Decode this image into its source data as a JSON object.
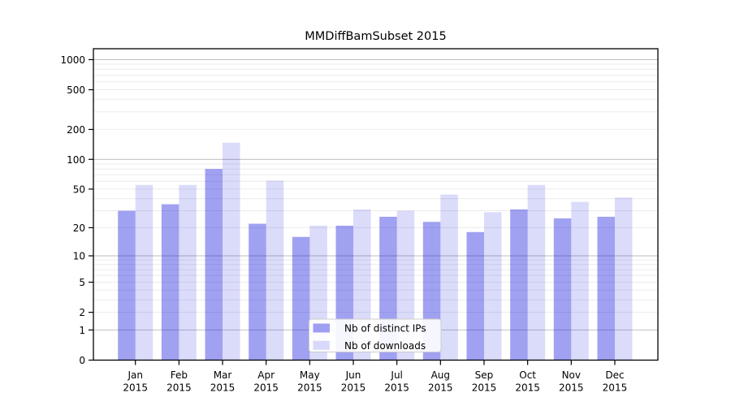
{
  "chart_data": {
    "type": "bar",
    "title": "MMDiffBamSubset 2015",
    "categories": [
      [
        "Jan",
        "2015"
      ],
      [
        "Feb",
        "2015"
      ],
      [
        "Mar",
        "2015"
      ],
      [
        "Apr",
        "2015"
      ],
      [
        "May",
        "2015"
      ],
      [
        "Jun",
        "2015"
      ],
      [
        "Jul",
        "2015"
      ],
      [
        "Aug",
        "2015"
      ],
      [
        "Sep",
        "2015"
      ],
      [
        "Oct",
        "2015"
      ],
      [
        "Nov",
        "2015"
      ],
      [
        "Dec",
        "2015"
      ]
    ],
    "series": [
      {
        "name": "Nb of distinct IPs",
        "color": "rgba(0,0,220,0.37)",
        "values": [
          30,
          35,
          80,
          22,
          16,
          21,
          26,
          23,
          18,
          31,
          25,
          26
        ]
      },
      {
        "name": "Nb of downloads",
        "color": "rgba(0,0,220,0.14)",
        "values": [
          55,
          55,
          147,
          61,
          21,
          31,
          30,
          44,
          29,
          55,
          37,
          41
        ]
      }
    ],
    "y_ticks": [
      0,
      1,
      2,
      5,
      10,
      20,
      50,
      100,
      200,
      500,
      1000
    ],
    "y_scale": "log10(1+x)",
    "ylim": [
      0,
      1285
    ],
    "xlabel": "",
    "ylabel": "",
    "grid": "horizontal major+minor",
    "legend_position": "lower center",
    "colors": {
      "grid_major": "#c3c3c3",
      "grid_minor": "#ececec",
      "spine": "#000000",
      "text": "#000000",
      "legend_border": "#cccccc",
      "legend_background": "#ffffff"
    }
  }
}
